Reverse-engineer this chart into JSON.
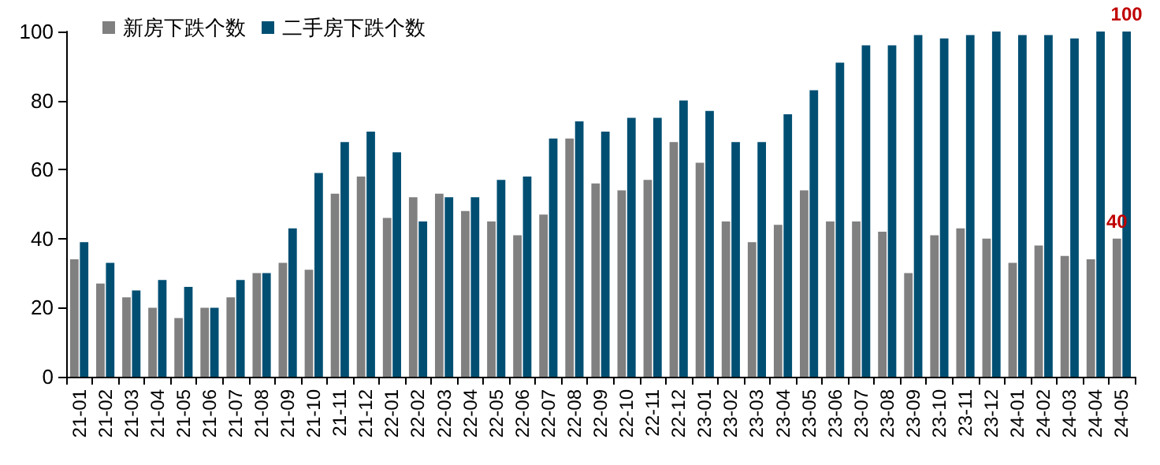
{
  "chart_data": {
    "type": "bar",
    "categories": [
      "21-01",
      "21-02",
      "21-03",
      "21-04",
      "21-05",
      "21-06",
      "21-07",
      "21-08",
      "21-09",
      "21-10",
      "21-11",
      "21-12",
      "22-01",
      "22-02",
      "22-03",
      "22-04",
      "22-05",
      "22-06",
      "22-07",
      "22-08",
      "22-09",
      "22-10",
      "22-11",
      "22-12",
      "23-01",
      "23-02",
      "23-03",
      "23-04",
      "23-05",
      "23-06",
      "23-07",
      "23-08",
      "23-09",
      "23-10",
      "23-11",
      "23-12",
      "24-01",
      "24-02",
      "24-03",
      "24-04",
      "24-05"
    ],
    "series": [
      {
        "name": "新房下跌个数",
        "color": "#808080",
        "values": [
          34,
          27,
          23,
          20,
          17,
          20,
          23,
          30,
          33,
          31,
          53,
          58,
          46,
          52,
          53,
          48,
          45,
          41,
          47,
          69,
          56,
          54,
          57,
          68,
          62,
          45,
          39,
          44,
          54,
          45,
          45,
          42,
          30,
          41,
          43,
          40,
          33,
          38,
          35,
          34,
          40
        ],
        "value_labels": [
          null,
          null,
          null,
          null,
          null,
          null,
          null,
          null,
          null,
          null,
          null,
          null,
          null,
          null,
          null,
          null,
          null,
          null,
          null,
          null,
          null,
          null,
          null,
          null,
          null,
          null,
          null,
          null,
          null,
          null,
          null,
          null,
          null,
          null,
          null,
          null,
          null,
          null,
          null,
          null,
          "40"
        ]
      },
      {
        "name": "二手房下跌个数",
        "color": "#004f73",
        "values": [
          39,
          33,
          25,
          28,
          26,
          20,
          28,
          30,
          43,
          59,
          68,
          71,
          65,
          45,
          52,
          52,
          57,
          58,
          69,
          74,
          71,
          75,
          75,
          80,
          77,
          68,
          68,
          76,
          83,
          91,
          96,
          96,
          99,
          98,
          99,
          100,
          99,
          99,
          98,
          100,
          100
        ],
        "value_labels": [
          null,
          null,
          null,
          null,
          null,
          null,
          null,
          null,
          null,
          null,
          null,
          null,
          null,
          null,
          null,
          null,
          null,
          null,
          null,
          null,
          null,
          null,
          null,
          null,
          null,
          null,
          null,
          null,
          null,
          null,
          null,
          null,
          null,
          null,
          null,
          null,
          null,
          null,
          null,
          null,
          "100"
        ]
      }
    ],
    "ylim": [
      0,
      100
    ],
    "yticks": [
      0,
      20,
      40,
      60,
      80,
      100
    ],
    "grid": false,
    "legend": "top left"
  }
}
